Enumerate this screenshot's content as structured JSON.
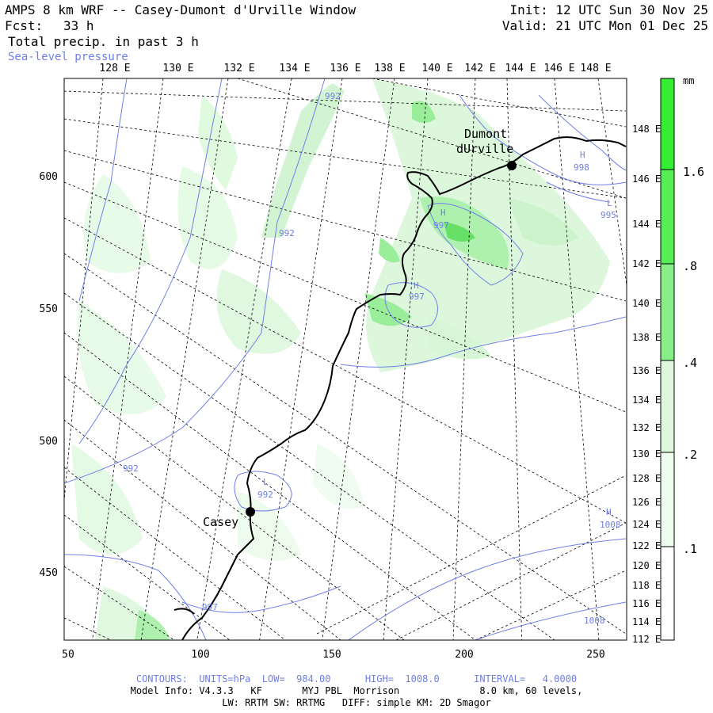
{
  "header": {
    "title": "AMPS 8 km WRF -- Casey-Dumont d'Urville Window",
    "forecast_label": "Fcst:",
    "forecast_value": "33 h",
    "field": "Total precip. in past 3 h",
    "overlay": "Sea-level pressure",
    "init": "Init: 12 UTC Sun 30 Nov 25",
    "valid": "Valid: 21 UTC Mon 01 Dec 25"
  },
  "top_axis": [
    "128 E",
    "130 E",
    "132 E",
    "134 E",
    "136 E",
    "138 E",
    "140 E",
    "142 E",
    "144 E",
    "146 E",
    "148 E"
  ],
  "right_axis": [
    "148 E",
    "146 E",
    "144 E",
    "142 E",
    "140 E",
    "138 E",
    "136 E",
    "134 E",
    "132 E",
    "130 E",
    "128 E",
    "126 E",
    "124 E",
    "122 E",
    "120 E",
    "118 E",
    "116 E",
    "114 E",
    "112 E"
  ],
  "left_axis": [
    "600",
    "550",
    "500",
    "450"
  ],
  "bottom_axis": [
    "50",
    "100",
    "150",
    "200",
    "250"
  ],
  "stations": {
    "dumont_line1": "Dumont",
    "dumont_line2": "dUrville",
    "casey": "Casey"
  },
  "pressure_labels": {
    "h1": "H",
    "v992a": "992",
    "v992b": "992",
    "v992c": "992",
    "l1": "L",
    "v992d": "992",
    "h2": "H",
    "v997a": "997",
    "h3": "H",
    "v997b": "997",
    "v997c": "997",
    "h4": "H",
    "v998": "998",
    "l2": "L",
    "v995": "995",
    "h5": "H",
    "v1008a": "1008",
    "v1008b": "1008"
  },
  "colorbar": {
    "unit": "mm",
    "labels": [
      "1.6",
      ".8",
      ".4",
      ".2",
      ".1"
    ],
    "colors": [
      "#33ee33",
      "#55ee55",
      "#88ee88",
      "#bbf5bb",
      "#e0fae0"
    ]
  },
  "footer": {
    "contours": "CONTOURS:  UNITS=hPa  LOW=  984.00      HIGH=  1008.0      INTERVAL=   4.0000",
    "model": "Model Info: V4.3.3   KF       MYJ PBL  Morrison              8.0 km, 60 levels,",
    "physics": "LW: RRTM SW: RRTMG   DIFF: simple KM: 2D Smagor"
  },
  "colors": {
    "contour": "#6f7fe8",
    "coast": "#000000",
    "grid": "#000000"
  }
}
